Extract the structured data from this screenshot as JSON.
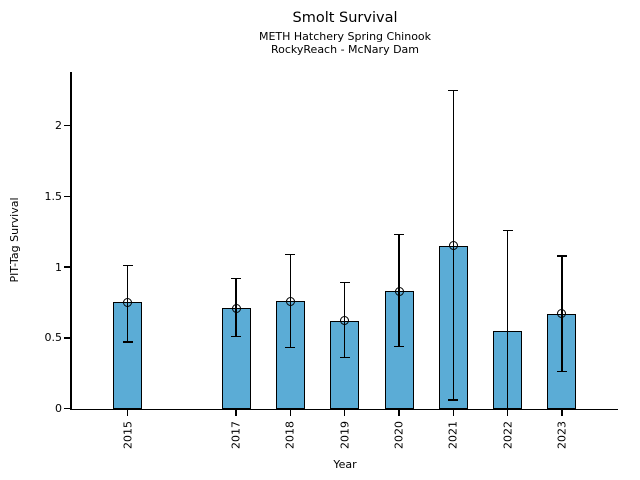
{
  "chart_data": {
    "type": "bar",
    "title": "Smolt Survival",
    "subtitles": [
      "METH Hatchery Spring Chinook",
      "RockyReach - McNary Dam"
    ],
    "xlabel": "Year",
    "ylabel": "PIT-Tag Survival",
    "yticks": [
      0,
      0.5,
      1,
      1.5,
      2
    ],
    "ytick_labels": [
      "0",
      "0.5",
      "1",
      "1.5",
      "2"
    ],
    "ylim": [
      0,
      2.38
    ],
    "grid": false,
    "legend": "none",
    "bar_color": "#5BACD6",
    "bar_edge_color": "#000000",
    "errorbar_color": "#000000",
    "points": [
      {
        "year": "2015",
        "value": 0.75,
        "err_low": 0.47,
        "err_high": 1.01,
        "marker": true
      },
      {
        "year": "2017",
        "value": 0.71,
        "err_low": 0.51,
        "err_high": 0.92,
        "marker": true
      },
      {
        "year": "2018",
        "value": 0.76,
        "err_low": 0.43,
        "err_high": 1.09,
        "marker": true
      },
      {
        "year": "2019",
        "value": 0.62,
        "err_low": 0.36,
        "err_high": 0.89,
        "marker": true
      },
      {
        "year": "2020",
        "value": 0.83,
        "err_low": 0.44,
        "err_high": 1.23,
        "marker": true
      },
      {
        "year": "2021",
        "value": 1.15,
        "err_low": 0.06,
        "err_high": 2.25,
        "marker": true
      },
      {
        "year": "2022",
        "value": 0.55,
        "err_low": 0.0,
        "err_high": 1.26,
        "marker": false
      },
      {
        "year": "2023",
        "value": 0.67,
        "err_low": 0.26,
        "err_high": 1.08,
        "marker": true
      }
    ]
  }
}
